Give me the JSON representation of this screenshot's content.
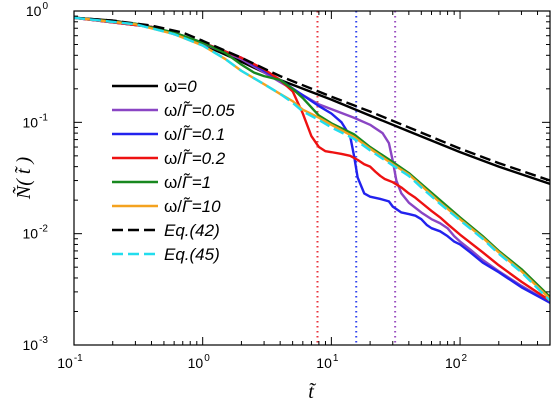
{
  "chart_data": {
    "type": "line",
    "xscale": "log",
    "yscale": "log",
    "xlim": [
      0.1,
      500
    ],
    "ylim": [
      0.001,
      1
    ],
    "xticks": [
      {
        "value": 0.1,
        "mant": "10",
        "exp": "-1"
      },
      {
        "value": 1,
        "mant": "10",
        "exp": "0"
      },
      {
        "value": 10,
        "mant": "10",
        "exp": "1"
      },
      {
        "value": 100,
        "mant": "10",
        "exp": "2"
      }
    ],
    "yticks": [
      {
        "value": 0.001,
        "mant": "10",
        "exp": "-3"
      },
      {
        "value": 0.01,
        "mant": "10",
        "exp": "-2"
      },
      {
        "value": 0.1,
        "mant": "10",
        "exp": "-1"
      },
      {
        "value": 1,
        "mant": "10",
        "exp": "0"
      }
    ],
    "xlabel": "t̃",
    "ylabel": "Ñ( t̃ )",
    "legend_position": "left",
    "vlines": [
      {
        "x": 7.8,
        "color": "#e8333c"
      },
      {
        "x": 15.6,
        "color": "#3344ee"
      },
      {
        "x": 31.3,
        "color": "#9a4fc0"
      }
    ],
    "series": [
      {
        "name": "ω=0",
        "color": "#000000",
        "dash": "solid",
        "x": [
          0.1,
          0.2,
          0.4,
          0.7,
          1,
          2,
          4,
          10,
          20,
          40,
          100,
          200,
          500
        ],
        "y": [
          0.87,
          0.82,
          0.72,
          0.6,
          0.5,
          0.35,
          0.24,
          0.16,
          0.115,
          0.083,
          0.054,
          0.04,
          0.028
        ]
      },
      {
        "name": "ω/Γ̃=0.05",
        "color": "#8a45c4",
        "dash": "solid",
        "x": [
          0.1,
          0.4,
          1,
          2,
          4,
          8,
          15,
          20,
          25,
          28,
          30,
          32,
          35,
          40,
          50,
          60,
          70,
          80,
          90,
          100,
          120,
          150,
          200,
          300,
          500
        ],
        "y": [
          0.87,
          0.72,
          0.51,
          0.37,
          0.23,
          0.145,
          0.11,
          0.095,
          0.08,
          0.065,
          0.045,
          0.03,
          0.023,
          0.019,
          0.0155,
          0.0135,
          0.0124,
          0.0112,
          0.0095,
          0.0085,
          0.0072,
          0.0058,
          0.0046,
          0.0034,
          0.0024
        ]
      },
      {
        "name": "ω/Γ̃=0.1",
        "color": "#2222ee",
        "dash": "solid",
        "x": [
          0.1,
          0.4,
          1,
          2,
          4,
          8,
          10,
          12,
          14,
          15,
          16,
          18,
          20,
          24,
          28,
          30,
          35,
          40,
          45,
          50,
          55,
          60,
          70,
          80,
          90,
          100,
          120,
          150,
          200,
          300,
          500
        ],
        "y": [
          0.87,
          0.72,
          0.52,
          0.38,
          0.24,
          0.14,
          0.12,
          0.1,
          0.075,
          0.05,
          0.032,
          0.023,
          0.0215,
          0.0205,
          0.0195,
          0.0175,
          0.0155,
          0.015,
          0.0145,
          0.0135,
          0.012,
          0.0112,
          0.0105,
          0.0095,
          0.0085,
          0.008,
          0.0068,
          0.0055,
          0.0045,
          0.0033,
          0.0024
        ]
      },
      {
        "name": "ω/Γ̃=0.2",
        "color": "#ee1111",
        "dash": "solid",
        "x": [
          0.1,
          0.4,
          1,
          2,
          3,
          4,
          5,
          6,
          7,
          8,
          9,
          10,
          12,
          14,
          16,
          18,
          20,
          22,
          24,
          26,
          30,
          35,
          40,
          45,
          50,
          60,
          70,
          80,
          100,
          150,
          200,
          300,
          500
        ],
        "y": [
          0.87,
          0.72,
          0.52,
          0.38,
          0.3,
          0.24,
          0.19,
          0.12,
          0.075,
          0.06,
          0.055,
          0.054,
          0.052,
          0.05,
          0.046,
          0.042,
          0.04,
          0.036,
          0.033,
          0.031,
          0.029,
          0.026,
          0.023,
          0.021,
          0.019,
          0.016,
          0.014,
          0.0122,
          0.0098,
          0.0068,
          0.0052,
          0.0037,
          0.0025
        ]
      },
      {
        "name": "ω/Γ̃=1",
        "color": "#18881f",
        "dash": "solid",
        "x": [
          0.1,
          0.3,
          0.6,
          1,
          1.5,
          2,
          2.5,
          3,
          4,
          5,
          6,
          8,
          10,
          15,
          20,
          30,
          40,
          50,
          70,
          100,
          150,
          200,
          300,
          500
        ],
        "y": [
          0.87,
          0.77,
          0.64,
          0.52,
          0.42,
          0.33,
          0.28,
          0.26,
          0.24,
          0.2,
          0.165,
          0.115,
          0.098,
          0.078,
          0.06,
          0.044,
          0.035,
          0.028,
          0.02,
          0.014,
          0.0095,
          0.007,
          0.0048,
          0.0027
        ]
      },
      {
        "name": "ω/Γ̃=10",
        "color": "#f4a21f",
        "dash": "solid",
        "x": [
          0.1,
          0.3,
          0.6,
          1,
          1.5,
          2,
          3,
          4,
          5,
          6,
          8,
          10,
          15,
          20,
          30,
          40,
          50,
          70,
          100,
          150,
          200,
          300,
          500
        ],
        "y": [
          0.87,
          0.76,
          0.62,
          0.49,
          0.37,
          0.29,
          0.22,
          0.18,
          0.155,
          0.13,
          0.11,
          0.095,
          0.074,
          0.058,
          0.042,
          0.034,
          0.027,
          0.019,
          0.0135,
          0.0092,
          0.0068,
          0.0046,
          0.0026
        ]
      },
      {
        "name": "Eq.(42)",
        "color": "#000000",
        "dash": "dash",
        "x": [
          0.1,
          0.2,
          0.4,
          0.7,
          1,
          2,
          4,
          10,
          20,
          40,
          100,
          200,
          500
        ],
        "y": [
          0.87,
          0.82,
          0.74,
          0.64,
          0.54,
          0.38,
          0.26,
          0.17,
          0.125,
          0.09,
          0.058,
          0.043,
          0.03
        ]
      },
      {
        "name": "Eq.(45)",
        "color": "#22ddee",
        "dash": "dash",
        "x": [
          0.1,
          0.3,
          0.6,
          1,
          1.5,
          2,
          3,
          4,
          5,
          6,
          8,
          10,
          15,
          20,
          30,
          40,
          50,
          70,
          100,
          150,
          200,
          300,
          500
        ],
        "y": [
          0.87,
          0.76,
          0.62,
          0.49,
          0.37,
          0.29,
          0.22,
          0.18,
          0.15,
          0.125,
          0.105,
          0.09,
          0.071,
          0.056,
          0.041,
          0.033,
          0.026,
          0.0185,
          0.0132,
          0.009,
          0.0066,
          0.0045,
          0.0025
        ]
      }
    ]
  },
  "legend_entries": [
    {
      "pre": "ω=",
      "var": "0",
      "italic": false,
      "var_italic": true
    },
    {
      "pre": "ω/",
      "var": "Γ̃=0.05",
      "italic": false,
      "var_italic": true
    },
    {
      "pre": "ω/",
      "var": "Γ̃=0.1",
      "italic": false,
      "var_italic": true
    },
    {
      "pre": "ω/",
      "var": "Γ̃=0.2",
      "italic": false,
      "var_italic": true
    },
    {
      "pre": "ω/",
      "var": "Γ̃=1",
      "italic": false,
      "var_italic": true
    },
    {
      "pre": "ω/",
      "var": "Γ̃=10",
      "italic": false,
      "var_italic": true
    },
    {
      "pre": "",
      "var": "Eq.(42)",
      "italic": true,
      "var_italic": true
    },
    {
      "pre": "",
      "var": "Eq.(45)",
      "italic": true,
      "var_italic": true
    }
  ]
}
